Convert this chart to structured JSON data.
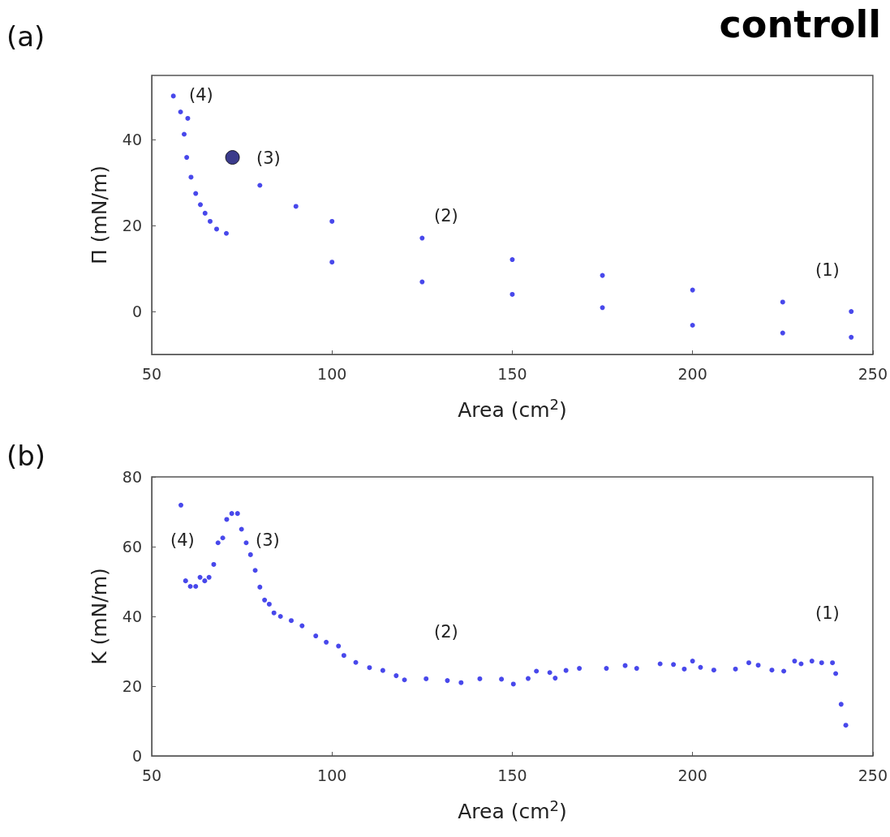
{
  "chart_data": [
    {
      "type": "scatter",
      "title": "controll",
      "xlabel": "Area (cm$^{2}$)",
      "ylabel": "Π (mN/m)",
      "xlim": [
        50,
        250
      ],
      "xticks": [
        50,
        100,
        150,
        200,
        250
      ],
      "ylim": [
        -10,
        55
      ],
      "yticks": [
        0,
        20,
        40
      ],
      "marker": "circle",
      "annotations": [
        "(a)",
        "(4)",
        "(3)",
        "(2)",
        "(1)"
      ],
      "series": [
        {
          "color": "#1a1ae6",
          "x": [
            244,
            225,
            200,
            175,
            150,
            125,
            100,
            90,
            80,
            60
          ],
          "values": [
            0,
            2.2,
            5,
            8.4,
            12.1,
            17.1,
            21,
            24.5,
            29.4,
            45
          ]
        },
        {
          "color": "#1a1ae6",
          "x": [
            56,
            58,
            59,
            59.7,
            60.9,
            62.2,
            63.5,
            64.8,
            66.2,
            68,
            70.7,
            100,
            125,
            150,
            175,
            200,
            225,
            244
          ],
          "values": [
            50.2,
            46.5,
            41.3,
            35.9,
            31.3,
            27.5,
            24.9,
            22.9,
            21,
            19.2,
            18.2,
            11.5,
            6.9,
            4,
            0.9,
            -3.2,
            -5,
            -6
          ]
        },
        {
          "color": "#0a0a6e",
          "x": [
            72.4
          ],
          "values": [
            35.9
          ]
        }
      ]
    },
    {
      "type": "scatter",
      "xlabel": "Area (cm$^{2}$)",
      "ylabel": "K (mN/m)",
      "xlim": [
        50,
        250
      ],
      "xticks": [
        50,
        100,
        150,
        200,
        250
      ],
      "ylim": [
        0,
        80
      ],
      "yticks": [
        0,
        20,
        40,
        60,
        80
      ],
      "marker": "circle",
      "annotations": [
        "(b)",
        "(4)",
        "(3)",
        "(2)",
        "(1)"
      ],
      "series": [
        {
          "color": "#1a1ae6",
          "x": [
            58.1,
            59.4,
            60.7,
            62.2,
            63.4,
            64.7,
            65.9,
            67.2,
            68.4,
            69.7,
            70.8,
            72.2,
            73.8,
            74.9,
            76.2,
            77.4,
            78.7,
            80,
            81.3,
            82.6,
            83.9,
            85.7,
            88.7,
            91.7,
            95.5,
            98.4,
            101.8,
            103.3,
            106.6,
            110.4,
            114.1,
            117.8,
            120.1,
            126.1,
            132,
            135.8,
            141,
            147,
            150.3,
            154.4,
            156.7,
            160.4,
            161.9,
            164.9,
            168.6,
            176.1,
            181.3,
            184.5,
            191,
            194.7,
            197.7,
            200,
            202.2,
            205.9,
            211.9,
            215.6,
            218.2,
            222,
            225.3,
            228.3,
            230.1,
            233.1,
            235.8,
            238.8,
            239.7,
            241.2,
            242.5
          ],
          "values": [
            71.9,
            50.2,
            48.6,
            48.6,
            51.2,
            50.2,
            51.2,
            54.9,
            61.1,
            62.5,
            67.8,
            69.5,
            69.5,
            65,
            61.1,
            57.7,
            53.2,
            48.4,
            44.7,
            43.5,
            41,
            40,
            38.8,
            37.3,
            34.4,
            32.6,
            31.5,
            28.8,
            26.8,
            25.3,
            24.5,
            23,
            21.8,
            22.1,
            21.6,
            21,
            22.1,
            22,
            20.6,
            22.2,
            24.3,
            23.9,
            22.3,
            24.5,
            25.1,
            25.1,
            25.9,
            25.1,
            26.4,
            26.2,
            24.9,
            27.2,
            25.4,
            24.6,
            24.9,
            26.7,
            26,
            24.6,
            24.3,
            27.2,
            26.4,
            27.2,
            26.7,
            26.7,
            23.6,
            14.8,
            8.8
          ]
        }
      ]
    }
  ]
}
